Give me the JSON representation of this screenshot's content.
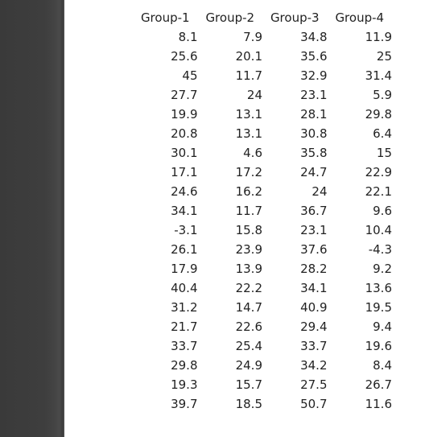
{
  "table": {
    "headers": [
      "Group-1",
      "Group-2",
      "Group-3",
      "Group-4"
    ],
    "rows": [
      [
        "8.1",
        "7.9",
        "34.8",
        "11.9"
      ],
      [
        "25.6",
        "20.1",
        "35.6",
        "25"
      ],
      [
        "45",
        "11.7",
        "32.9",
        "31.4"
      ],
      [
        "27.7",
        "24",
        "23.1",
        "5.9"
      ],
      [
        "19.9",
        "13.1",
        "28.1",
        "29.8"
      ],
      [
        "20.8",
        "13.1",
        "30.8",
        "6.4"
      ],
      [
        "30.1",
        "4.6",
        "35.8",
        "15"
      ],
      [
        "17.1",
        "17.2",
        "24.7",
        "22.9"
      ],
      [
        "24.6",
        "16.2",
        "24",
        "22.1"
      ],
      [
        "34.1",
        "11.7",
        "36.7",
        "9.6"
      ],
      [
        "-3.1",
        "15.8",
        "23.1",
        "10.4"
      ],
      [
        "26.1",
        "23.9",
        "37.6",
        "-4.3"
      ],
      [
        "17.9",
        "13.9",
        "28.2",
        "9.2"
      ],
      [
        "40.4",
        "22.2",
        "34.1",
        "13.6"
      ],
      [
        "31.2",
        "14.7",
        "40.9",
        "19.5"
      ],
      [
        "21.7",
        "22.6",
        "29.4",
        "9.4"
      ],
      [
        "33.7",
        "25.4",
        "33.7",
        "19.6"
      ],
      [
        "29.8",
        "24.9",
        "34.2",
        "8.4"
      ],
      [
        "19.3",
        "15.7",
        "27.5",
        "26.7"
      ],
      [
        "39.7",
        "18.5",
        "50.7",
        "11.6"
      ]
    ]
  }
}
